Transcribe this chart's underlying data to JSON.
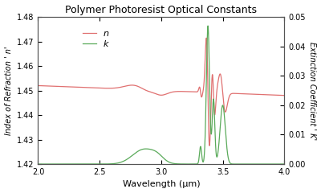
{
  "title": "Polymer Photoresist Optical Constants",
  "xlabel": "Wavelength (μm)",
  "ylabel_left": "Index of Refraction ' n'",
  "ylabel_right": "Extinction Coefficient ' K'",
  "xlim": [
    2.0,
    4.0
  ],
  "ylim_left": [
    1.42,
    1.48
  ],
  "ylim_right": [
    0.0,
    0.05
  ],
  "yticks_left": [
    1.42,
    1.43,
    1.44,
    1.45,
    1.46,
    1.47,
    1.48
  ],
  "yticks_right": [
    0.0,
    0.01,
    0.02,
    0.03,
    0.04,
    0.05
  ],
  "xticks": [
    2.0,
    2.5,
    3.0,
    3.5,
    4.0
  ],
  "legend_n": "n",
  "legend_k": "k",
  "color_n": "#e07070",
  "color_k": "#5aaa5a",
  "background": "#ffffff"
}
